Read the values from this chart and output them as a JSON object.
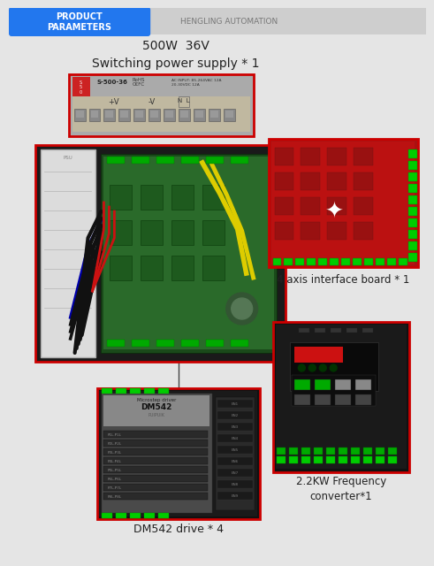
{
  "bg_color": "#e5e5e5",
  "header_bg": "#d0d0d0",
  "header_blue_text": "PRODUCT\nPARAMETERS",
  "header_gray_text": "HENGLING AUTOMATION",
  "title_power_supply": "500W  36V\nSwitching power supply * 1",
  "label_interface": "4 axis interface board * 1",
  "label_frequency": "2.2KW Frequency\nconverter*1",
  "label_drive": "DM542 drive * 4",
  "red_border": "#cc0000",
  "text_color": "#222222",
  "blue_header_start": "#2266ee",
  "blue_header_end": "#44aaff"
}
